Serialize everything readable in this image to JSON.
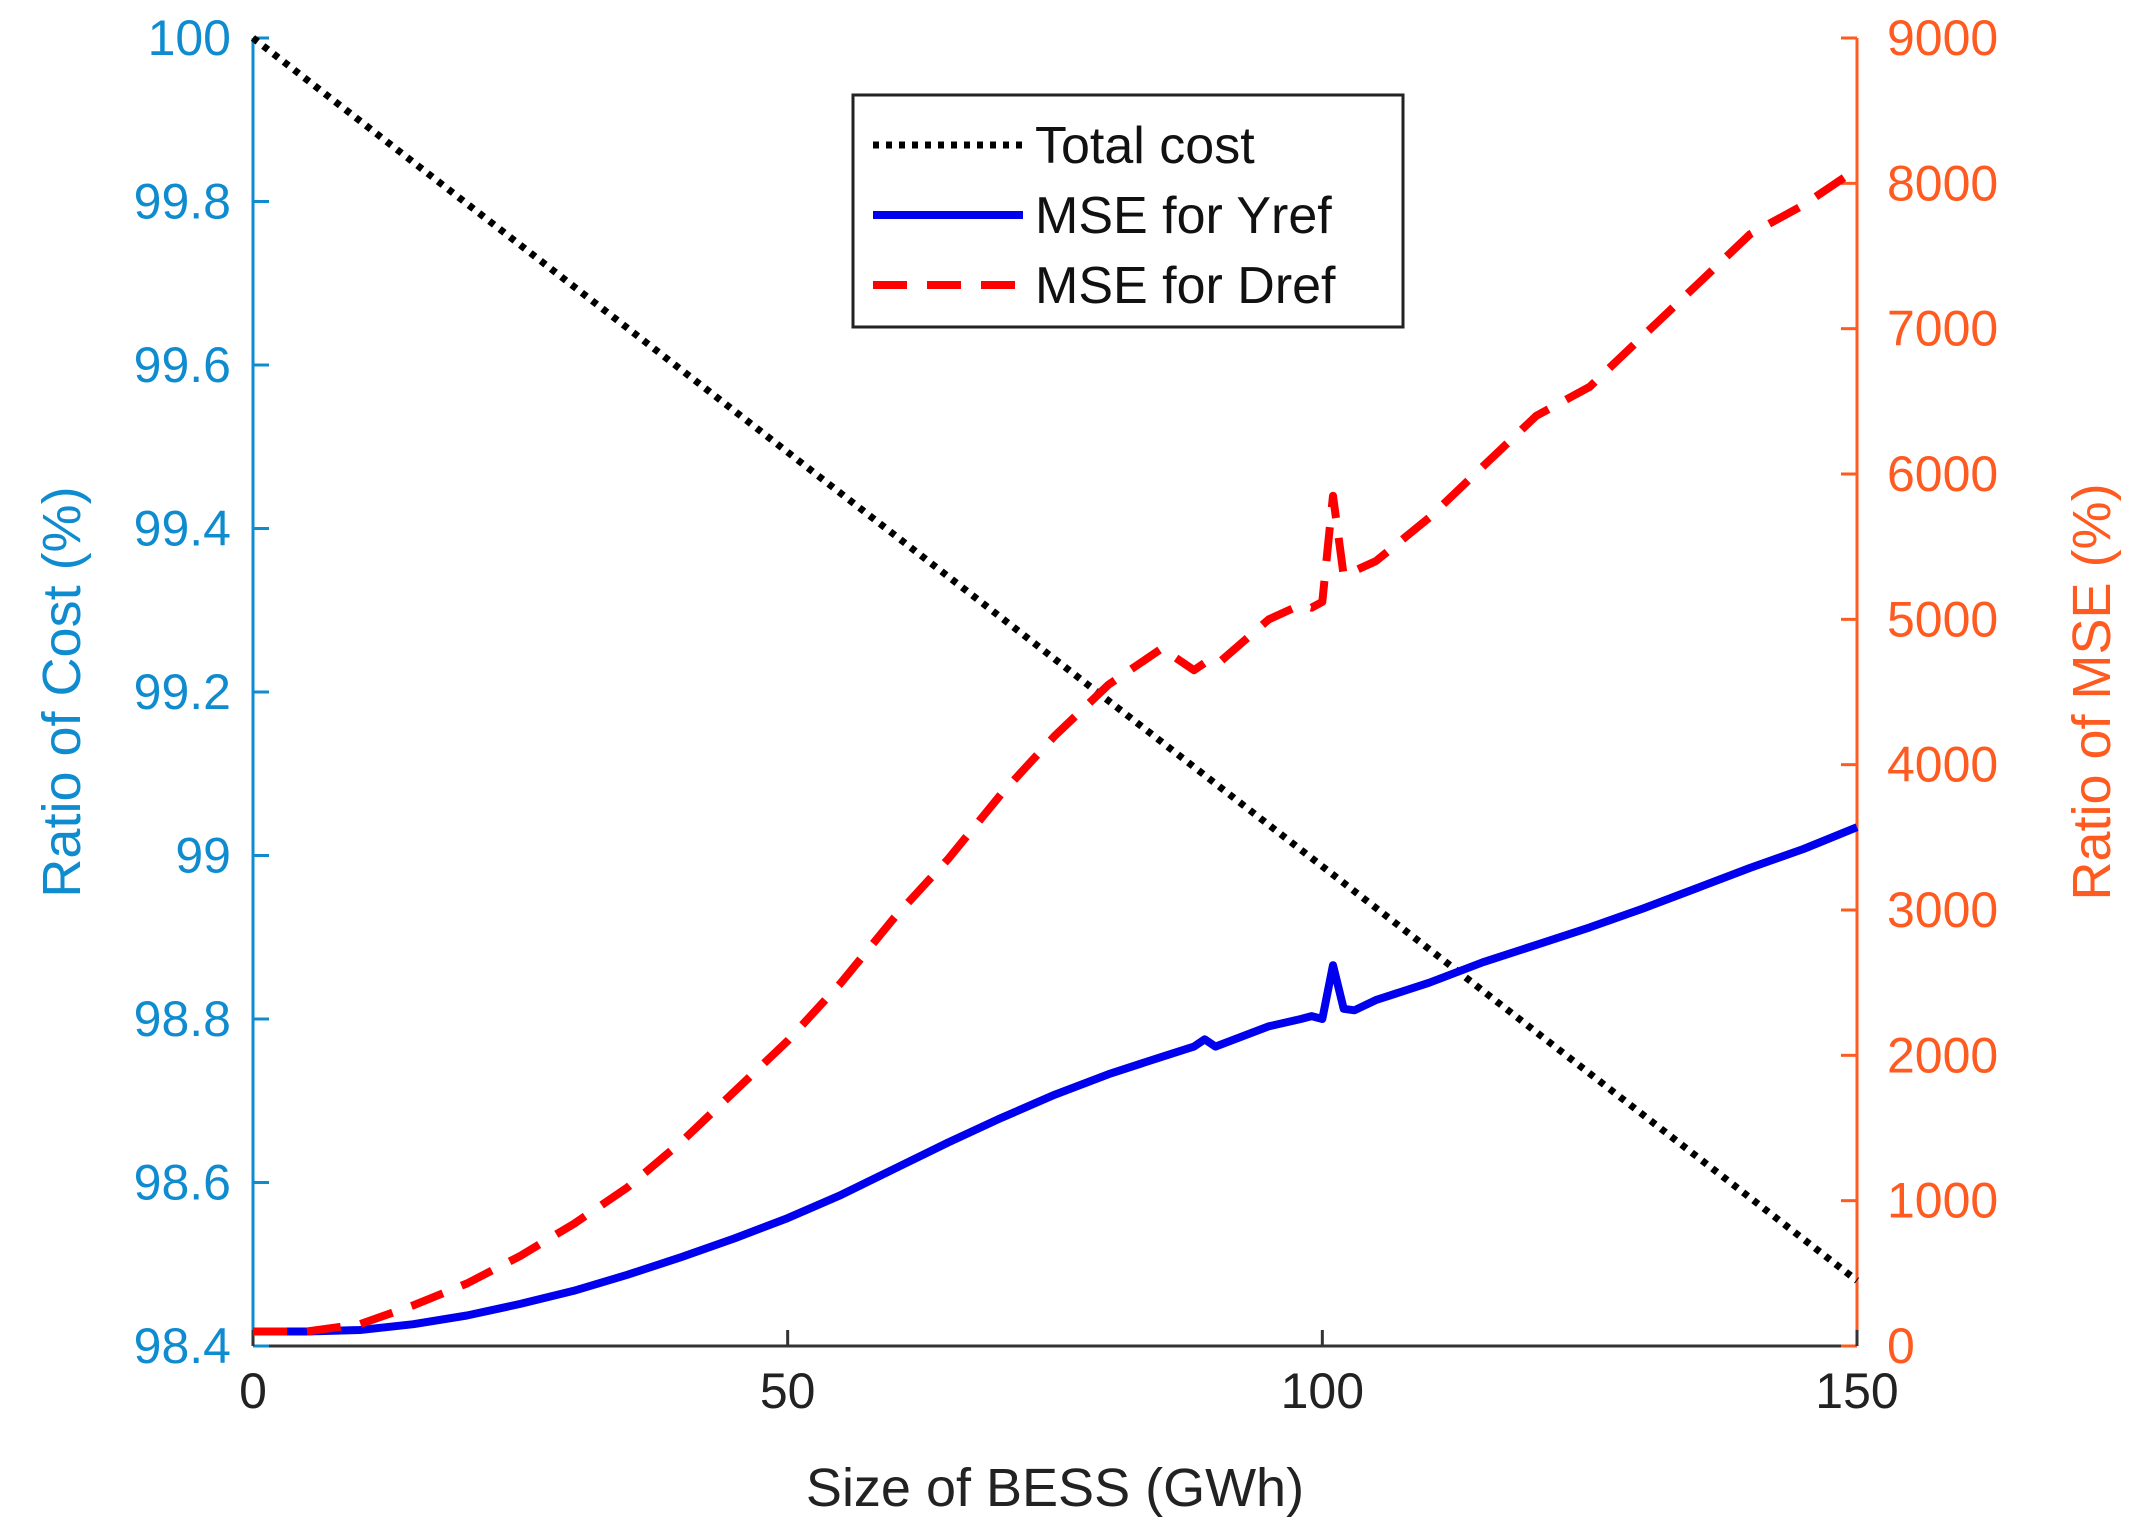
{
  "chart_data": {
    "type": "line",
    "xlabel": "Size of BESS (GWh)",
    "ylabel_left": "Ratio of Cost (%)",
    "ylabel_right": "Ratio of MSE (%)",
    "xlim": [
      0,
      150
    ],
    "ylim_left": [
      98.4,
      100
    ],
    "ylim_right": [
      0,
      9000
    ],
    "x_ticks": [
      0,
      50,
      100,
      150
    ],
    "y_ticks_left": [
      "98.4",
      "98.6",
      "98.8",
      "99",
      "99.2",
      "99.4",
      "99.6",
      "99.8",
      "100"
    ],
    "y_ticks_right": [
      "0",
      "1000",
      "2000",
      "3000",
      "4000",
      "5000",
      "6000",
      "7000",
      "8000",
      "9000"
    ],
    "grid": false,
    "legend_position": "top-center",
    "colors": {
      "left_axis": "#0f8ccf",
      "right_axis": "#ff5a1f",
      "total_cost": "#000000",
      "mse_yref": "#0000ee",
      "mse_dref": "#ff0000"
    },
    "series": [
      {
        "name": "Total cost",
        "axis": "left",
        "style": "dotted",
        "x": [
          0,
          150
        ],
        "y": [
          100,
          98.48
        ]
      },
      {
        "name": "MSE for Yref",
        "axis": "right",
        "style": "solid",
        "x": [
          0,
          5,
          10,
          15,
          20,
          25,
          30,
          35,
          40,
          45,
          50,
          55,
          60,
          65,
          70,
          75,
          80,
          85,
          88,
          89,
          90,
          95,
          98,
          99,
          100,
          101,
          102,
          103,
          105,
          110,
          115,
          120,
          125,
          130,
          135,
          140,
          145,
          150
        ],
        "y": [
          100,
          100,
          110,
          150,
          210,
          290,
          380,
          490,
          610,
          740,
          880,
          1040,
          1220,
          1400,
          1570,
          1730,
          1870,
          1990,
          2060,
          2110,
          2060,
          2200,
          2250,
          2270,
          2250,
          2620,
          2320,
          2310,
          2380,
          2500,
          2640,
          2760,
          2880,
          3010,
          3150,
          3290,
          3420,
          3570
        ]
      },
      {
        "name": "MSE for Dref",
        "axis": "right",
        "style": "dashed",
        "x": [
          0,
          5,
          10,
          15,
          20,
          25,
          30,
          35,
          40,
          45,
          50,
          55,
          60,
          65,
          70,
          75,
          80,
          85,
          88,
          89,
          90,
          95,
          98,
          99,
          100,
          101,
          102,
          105,
          110,
          115,
          120,
          125,
          130,
          135,
          140,
          145,
          150
        ],
        "y": [
          100,
          100,
          150,
          280,
          430,
          620,
          840,
          1090,
          1400,
          1750,
          2100,
          2500,
          2950,
          3350,
          3800,
          4200,
          4550,
          4800,
          4650,
          4700,
          4680,
          5000,
          5100,
          5080,
          5120,
          5850,
          5300,
          5400,
          5700,
          6050,
          6400,
          6600,
          6950,
          7300,
          7650,
          7850,
          8100
        ]
      }
    ]
  }
}
